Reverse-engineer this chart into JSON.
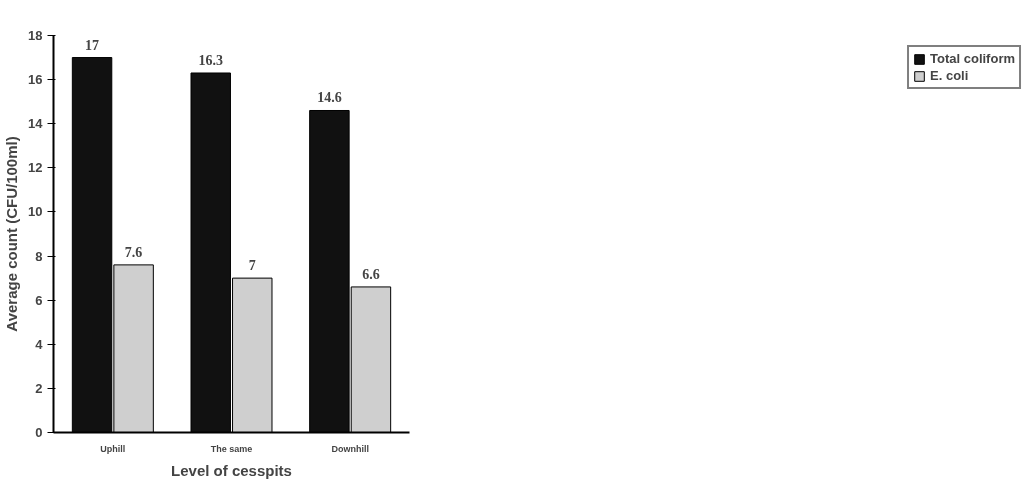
{
  "chart_data": {
    "type": "bar",
    "xlabel": "Level of cesspits",
    "ylabel": "Average count (CFU/100ml)",
    "categories": [
      "Uphill",
      "The same",
      "Downhill"
    ],
    "series": [
      {
        "name": "Total coliform",
        "color": "#111111",
        "values": [
          17,
          16.3,
          14.6
        ]
      },
      {
        "name": "E. coli",
        "color": "#cfcfcf",
        "values": [
          7.6,
          7,
          6.6
        ]
      }
    ],
    "ylim": [
      0,
      18
    ],
    "yticks": [
      0,
      2,
      4,
      6,
      8,
      10,
      12,
      14,
      16,
      18
    ],
    "data_labels": true,
    "legend": "right",
    "grid": false
  }
}
